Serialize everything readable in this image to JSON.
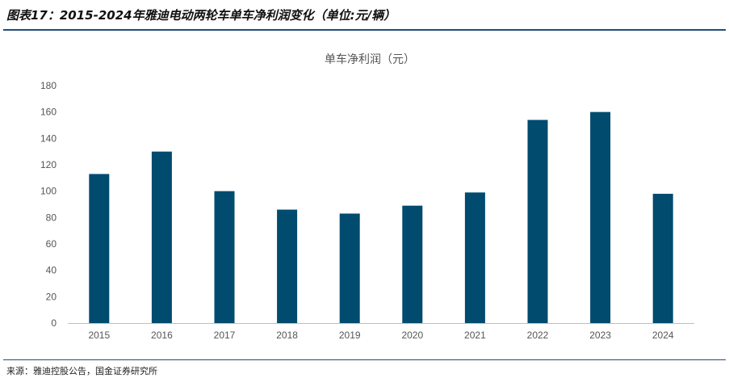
{
  "figure": {
    "title": "图表17：2015-2024年雅迪电动两轮车单车净利润变化（单位:元/辆）",
    "source": "来源：雅迪控股公告，国金证券研究所"
  },
  "chart_data": {
    "type": "bar",
    "title": "单车净利润（元）",
    "categories": [
      "2015",
      "2016",
      "2017",
      "2018",
      "2019",
      "2020",
      "2021",
      "2022",
      "2023",
      "2024"
    ],
    "values": [
      113,
      130,
      100,
      86,
      83,
      89,
      99,
      154,
      160,
      98
    ],
    "ylim": [
      0,
      180
    ],
    "yticks": [
      0,
      20,
      40,
      60,
      80,
      100,
      120,
      140,
      160,
      180
    ],
    "bar_color": "#004b6e",
    "grid": false,
    "legend": "none"
  }
}
